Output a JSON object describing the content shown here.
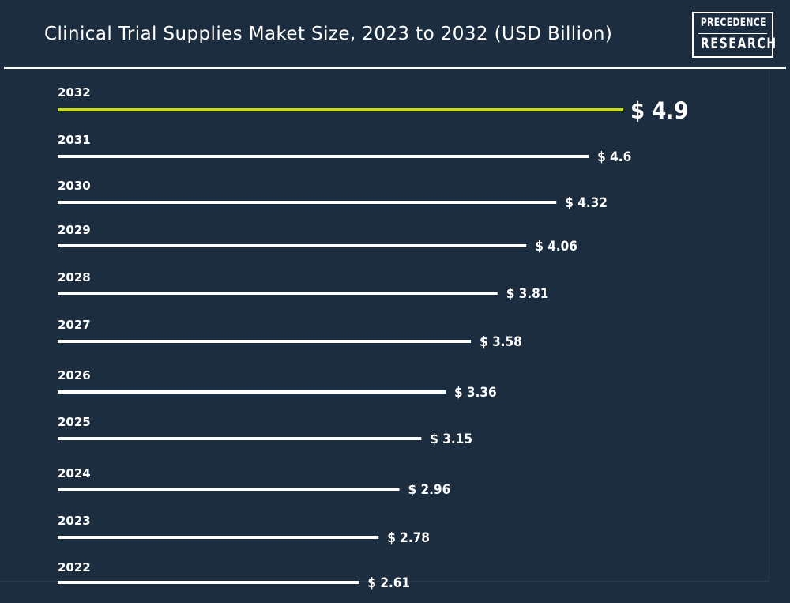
{
  "title": "Clinical Trial Supplies Maket Size, 2023 to 2032 (USD Billion)",
  "logo": {
    "line1": "PRECEDENCE",
    "line2": "RESEARCH"
  },
  "colors": {
    "background": "#1d2d40",
    "bar": "#ffffff",
    "highlight": "#c8dc1e",
    "text": "#ffffff"
  },
  "chart_data": {
    "type": "bar",
    "orientation": "horizontal",
    "categories": [
      "2032",
      "2031",
      "2030",
      "2029",
      "2028",
      "2027",
      "2026",
      "2025",
      "2024",
      "2023",
      "2022"
    ],
    "values": [
      4.9,
      4.6,
      4.32,
      4.06,
      3.81,
      3.58,
      3.36,
      3.15,
      2.96,
      2.78,
      2.61
    ],
    "value_labels": [
      "$ 4.9",
      "$ 4.6",
      "$ 4.32",
      "$ 4.06",
      "$ 3.81",
      "$ 3.58",
      "$ 3.36",
      "$ 3.15",
      "$ 2.96",
      "$ 2.78",
      "$ 2.61"
    ],
    "highlight_category": "2032",
    "title": "Clinical Trial Supplies Maket Size, 2023 to 2032 (USD Billion)",
    "xlabel": "",
    "ylabel": "",
    "xlim": [
      0,
      4.9
    ],
    "grid": false,
    "legend": "none"
  }
}
